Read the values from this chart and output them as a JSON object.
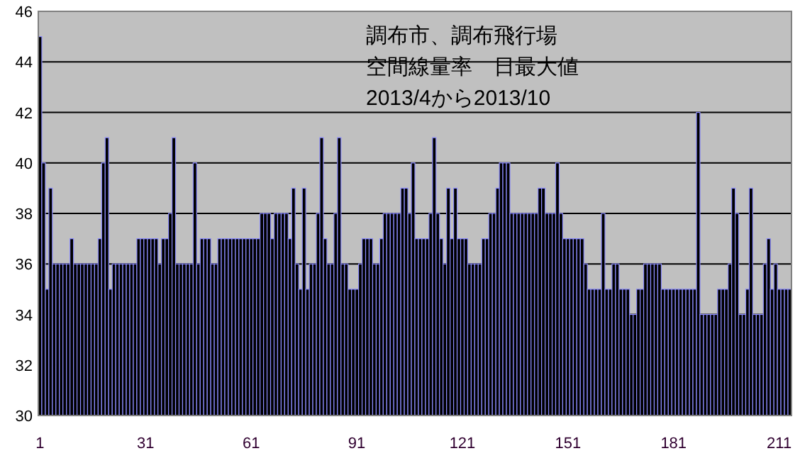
{
  "chart_data": {
    "type": "bar",
    "title": "調布市、調布飛行場",
    "subtitle": "空間線量率　日最大値",
    "annotations": [
      "2013/4から2013/10"
    ],
    "x": [
      1,
      2,
      3,
      4,
      5,
      6,
      7,
      8,
      9,
      10,
      11,
      12,
      13,
      14,
      15,
      16,
      17,
      18,
      19,
      20,
      21,
      22,
      23,
      24,
      25,
      26,
      27,
      28,
      29,
      30,
      31,
      32,
      33,
      34,
      35,
      36,
      37,
      38,
      39,
      40,
      41,
      42,
      43,
      44,
      45,
      46,
      47,
      48,
      49,
      50,
      51,
      52,
      53,
      54,
      55,
      56,
      57,
      58,
      59,
      60,
      61,
      62,
      63,
      64,
      65,
      66,
      67,
      68,
      69,
      70,
      71,
      72,
      73,
      74,
      75,
      76,
      77,
      78,
      79,
      80,
      81,
      82,
      83,
      84,
      85,
      86,
      87,
      88,
      89,
      90,
      91,
      92,
      93,
      94,
      95,
      96,
      97,
      98,
      99,
      100,
      101,
      102,
      103,
      104,
      105,
      106,
      107,
      108,
      109,
      110,
      111,
      112,
      113,
      114,
      115,
      116,
      117,
      118,
      119,
      120,
      121,
      122,
      123,
      124,
      125,
      126,
      127,
      128,
      129,
      130,
      131,
      132,
      133,
      134,
      135,
      136,
      137,
      138,
      139,
      140,
      141,
      142,
      143,
      144,
      145,
      146,
      147,
      148,
      149,
      150,
      151,
      152,
      153,
      154,
      155,
      156,
      157,
      158,
      159,
      160,
      161,
      162,
      163,
      164,
      165,
      166,
      167,
      168,
      169,
      170,
      171,
      172,
      173,
      174,
      175,
      176,
      177,
      178,
      179,
      180,
      181,
      182,
      183,
      184,
      185,
      186,
      187,
      188,
      189,
      190,
      191,
      192,
      193,
      194,
      195,
      196,
      197,
      198,
      199,
      200,
      201,
      202,
      203,
      204,
      205,
      206,
      207,
      208,
      209,
      210,
      211,
      212,
      213,
      214
    ],
    "values": [
      45,
      40,
      35,
      39,
      36,
      36,
      36,
      36,
      36,
      37,
      36,
      36,
      36,
      36,
      36,
      36,
      36,
      37,
      40,
      41,
      35,
      36,
      36,
      36,
      36,
      36,
      36,
      36,
      37,
      37,
      37,
      37,
      37,
      37,
      36,
      37,
      37,
      38,
      41,
      36,
      36,
      36,
      36,
      36,
      40,
      36,
      37,
      37,
      37,
      36,
      36,
      37,
      37,
      37,
      37,
      37,
      37,
      37,
      37,
      37,
      37,
      37,
      37,
      38,
      38,
      38,
      37,
      38,
      38,
      38,
      38,
      37,
      39,
      36,
      35,
      39,
      35,
      36,
      36,
      38,
      41,
      37,
      36,
      36,
      38,
      41,
      36,
      36,
      35,
      35,
      35,
      36,
      37,
      37,
      37,
      36,
      36,
      37,
      38,
      38,
      38,
      38,
      38,
      39,
      39,
      38,
      40,
      37,
      37,
      37,
      37,
      38,
      41,
      38,
      37,
      36,
      39,
      37,
      39,
      37,
      37,
      37,
      36,
      36,
      36,
      36,
      37,
      37,
      38,
      38,
      39,
      40,
      40,
      40,
      38,
      38,
      38,
      38,
      38,
      38,
      38,
      38,
      39,
      39,
      38,
      38,
      38,
      40,
      38,
      37,
      37,
      37,
      37,
      37,
      37,
      36,
      35,
      35,
      35,
      35,
      38,
      35,
      35,
      36,
      36,
      35,
      35,
      35,
      34,
      34,
      35,
      35,
      36,
      36,
      36,
      36,
      36,
      35,
      35,
      35,
      35,
      35,
      35,
      35,
      35,
      35,
      35,
      42,
      34,
      34,
      34,
      34,
      34,
      35,
      35,
      35,
      36,
      39,
      38,
      34,
      34,
      35,
      39,
      34,
      34,
      34,
      36,
      37,
      35,
      36,
      35,
      35,
      35,
      35
    ],
    "color": "#000000",
    "xlim": [
      0.5,
      214.5
    ],
    "xticks": [
      1,
      31,
      61,
      91,
      121,
      151,
      181,
      211
    ],
    "ylim": [
      30,
      46
    ],
    "yticks": [
      30,
      32,
      34,
      36,
      38,
      40,
      42,
      44,
      46
    ],
    "grid": "y"
  }
}
